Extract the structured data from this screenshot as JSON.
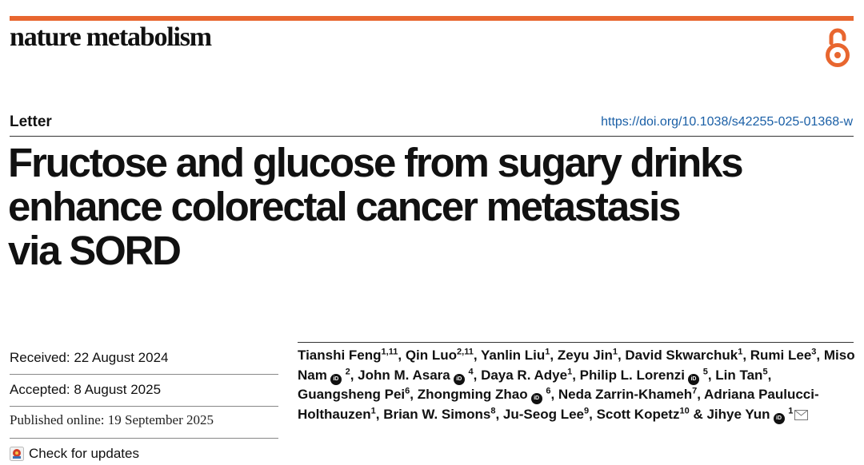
{
  "journal": "nature metabolism",
  "article_type": "Letter",
  "doi": "https://doi.org/10.1038/s42255-025-01368-w",
  "title_lines": [
    "Fructose and glucose from sugary drinks",
    "enhance colorectal cancer metastasis",
    "via SORD"
  ],
  "dates": {
    "received": "Received: 22 August 2024",
    "accepted": "Accepted: 8 August 2025",
    "published": "Published online: 19 September 2025"
  },
  "check_updates": "Check for updates",
  "authors": [
    {
      "name": "Tianshi Feng",
      "aff": "1,11",
      "orcid": false
    },
    {
      "name": "Qin Luo",
      "aff": "2,11",
      "orcid": false
    },
    {
      "name": "Yanlin Liu",
      "aff": "1",
      "orcid": false
    },
    {
      "name": "Zeyu Jin",
      "aff": "1",
      "orcid": false
    },
    {
      "name": "David Skwarchuk",
      "aff": "1",
      "orcid": false
    },
    {
      "name": "Rumi Lee",
      "aff": "3",
      "orcid": false
    },
    {
      "name": "Miso Nam",
      "aff": "2",
      "orcid": true
    },
    {
      "name": "John M. Asara",
      "aff": "4",
      "orcid": true
    },
    {
      "name": "Daya R. Adye",
      "aff": "1",
      "orcid": false
    },
    {
      "name": "Philip L. Lorenzi",
      "aff": "5",
      "orcid": true
    },
    {
      "name": "Lin Tan",
      "aff": "5",
      "orcid": false
    },
    {
      "name": "Guangsheng Pei",
      "aff": "6",
      "orcid": false
    },
    {
      "name": "Zhongming Zhao",
      "aff": "6",
      "orcid": true
    },
    {
      "name": "Neda Zarrin-Khameh",
      "aff": "7",
      "orcid": false
    },
    {
      "name": "Adriana Paulucci-Holthauzen",
      "aff": "1",
      "orcid": false
    },
    {
      "name": "Brian W. Simons",
      "aff": "8",
      "orcid": false
    },
    {
      "name": "Ju-Seog Lee",
      "aff": "9",
      "orcid": false
    },
    {
      "name": "Scott Kopetz",
      "aff": "10",
      "orcid": false
    },
    {
      "name": "Jihye Yun",
      "aff": "1",
      "orcid": true,
      "email": true
    }
  ],
  "colors": {
    "accent": "#e8662f",
    "link": "#1a5fa6"
  },
  "icons": [
    "open-access-icon",
    "orcid-icon",
    "mail-icon",
    "check-updates-icon"
  ]
}
